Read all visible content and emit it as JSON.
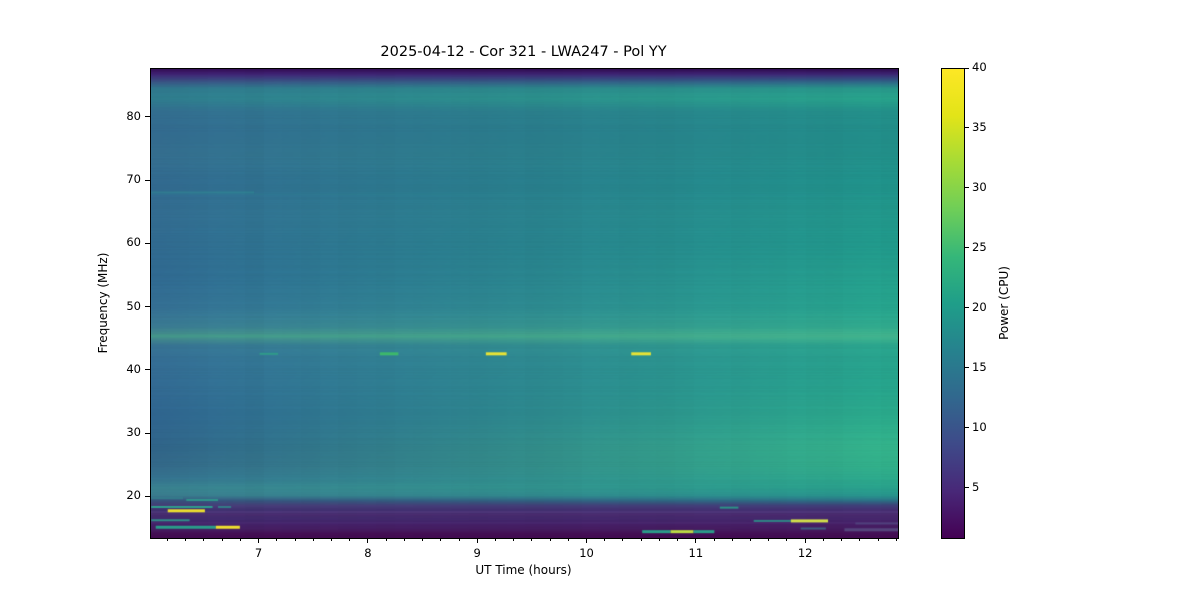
{
  "chart_data": {
    "type": "heatmap",
    "title": "2025-04-12 - Cor 321 - LWA247 - Pol YY",
    "xlabel": "UT Time (hours)",
    "ylabel": "Frequency (MHz)",
    "x_range": [
      6.007,
      12.84
    ],
    "y_range": [
      13.6,
      87.7
    ],
    "x_major_ticks": [
      7,
      8,
      9,
      10,
      11,
      12
    ],
    "x_minor_step_hours": 0.16667,
    "y_major_ticks": [
      20,
      30,
      40,
      50,
      60,
      70,
      80
    ],
    "grid": false,
    "legend": "none",
    "colorbar": {
      "label": "Power (CPU)",
      "ticks": [
        5,
        10,
        15,
        20,
        25,
        30,
        35,
        40
      ],
      "range": [
        0.9,
        40
      ],
      "colormap": "viridis",
      "stops": [
        [
          0.0,
          "#440154"
        ],
        [
          0.1,
          "#482878"
        ],
        [
          0.2,
          "#3e4a89"
        ],
        [
          0.3,
          "#31688e"
        ],
        [
          0.4,
          "#26828e"
        ],
        [
          0.5,
          "#1f9e89"
        ],
        [
          0.6,
          "#35b779"
        ],
        [
          0.7,
          "#6ece58"
        ],
        [
          0.8,
          "#a5db36"
        ],
        [
          0.9,
          "#e2e418"
        ],
        [
          1.0,
          "#fde725"
        ]
      ]
    },
    "background_profiles": {
      "left_column": [
        [
          87.7,
          "#330d55"
        ],
        [
          86.9,
          "#3f2273"
        ],
        [
          85.8,
          "#3a4f82"
        ],
        [
          84.6,
          "#30788e"
        ],
        [
          83.0,
          "#2f7d8e"
        ],
        [
          81.0,
          "#336e90"
        ],
        [
          78.0,
          "#336b90"
        ],
        [
          74.0,
          "#356f90"
        ],
        [
          70.0,
          "#326a90"
        ],
        [
          65.0,
          "#336d92"
        ],
        [
          60.0,
          "#316b91"
        ],
        [
          55.0,
          "#306a92"
        ],
        [
          50.0,
          "#357095"
        ],
        [
          47.0,
          "#3b7b93"
        ],
        [
          45.5,
          "#459089"
        ],
        [
          44.0,
          "#387394"
        ],
        [
          42.0,
          "#356e95"
        ],
        [
          38.0,
          "#336b94"
        ],
        [
          33.0,
          "#306691"
        ],
        [
          28.0,
          "#306489"
        ],
        [
          25.0,
          "#34698a"
        ],
        [
          23.0,
          "#357390"
        ],
        [
          21.5,
          "#3a8290"
        ],
        [
          20.3,
          "#3a7c8e"
        ],
        [
          19.5,
          "#37537e"
        ],
        [
          18.7,
          "#473c77"
        ],
        [
          18.0,
          "#3f3170"
        ],
        [
          17.3,
          "#482c6f"
        ],
        [
          16.6,
          "#3f2a6c"
        ],
        [
          15.8,
          "#44226a"
        ],
        [
          15.0,
          "#451e62"
        ],
        [
          14.3,
          "#440f54"
        ],
        [
          13.6,
          "#420a50"
        ]
      ],
      "right_column": [
        [
          87.7,
          "#2e0c4f"
        ],
        [
          86.9,
          "#3d2473"
        ],
        [
          85.8,
          "#2f5e85"
        ],
        [
          84.6,
          "#27988a"
        ],
        [
          83.0,
          "#27a38a"
        ],
        [
          81.0,
          "#229089"
        ],
        [
          78.0,
          "#218e89"
        ],
        [
          74.0,
          "#219089"
        ],
        [
          70.0,
          "#1f938a"
        ],
        [
          65.0,
          "#21988b"
        ],
        [
          60.0,
          "#209a8b"
        ],
        [
          55.0,
          "#23a08c"
        ],
        [
          50.0,
          "#26a58d"
        ],
        [
          47.0,
          "#30ab8d"
        ],
        [
          45.5,
          "#42b58d"
        ],
        [
          44.0,
          "#2aa68d"
        ],
        [
          42.0,
          "#27a38c"
        ],
        [
          38.0,
          "#26a58c"
        ],
        [
          33.0,
          "#2aab8b"
        ],
        [
          28.0,
          "#33b38a"
        ],
        [
          25.0,
          "#31b089"
        ],
        [
          23.0,
          "#2caa8b"
        ],
        [
          21.5,
          "#28a18b"
        ],
        [
          20.3,
          "#27948c"
        ],
        [
          19.5,
          "#2b7186"
        ],
        [
          18.7,
          "#3f3e78"
        ],
        [
          18.0,
          "#452f72"
        ],
        [
          17.3,
          "#4a2a6e"
        ],
        [
          16.6,
          "#44266a"
        ],
        [
          15.8,
          "#471e66"
        ],
        [
          15.0,
          "#451a5e"
        ],
        [
          14.3,
          "#430f55"
        ],
        [
          13.6,
          "#420a50"
        ]
      ]
    },
    "full_width_bands": [
      {
        "freq": 45.5,
        "color": "#45b18e",
        "alpha": 0.25,
        "px": 3
      },
      {
        "freq": 67.9,
        "color": "#2e8c95",
        "alpha": 0.15,
        "px": 2
      },
      {
        "freq": 17.7,
        "color": "#5a4488",
        "alpha": 0.4,
        "px": 2
      },
      {
        "freq": 16.0,
        "color": "#4f3378",
        "alpha": 0.35,
        "px": 2
      }
    ],
    "features": [
      {
        "t0": 7.0,
        "t1": 7.17,
        "freq": 42.7,
        "color": "#2f9f88",
        "px": 2,
        "alpha": 0.9
      },
      {
        "t0": 8.1,
        "t1": 8.27,
        "freq": 42.7,
        "color": "#3db96b",
        "px": 3,
        "alpha": 1
      },
      {
        "t0": 9.07,
        "t1": 9.26,
        "freq": 42.7,
        "color": "#e9e434",
        "px": 3,
        "alpha": 1
      },
      {
        "t0": 10.4,
        "t1": 10.58,
        "freq": 42.7,
        "color": "#e9e434",
        "px": 3,
        "alpha": 1
      },
      {
        "t0": 6.01,
        "t1": 6.95,
        "freq": 68.2,
        "color": "#2fa195",
        "px": 2,
        "alpha": 0.3
      },
      {
        "t0": 6.33,
        "t1": 6.62,
        "freq": 19.6,
        "color": "#2f9b8c",
        "px": 2,
        "alpha": 0.9
      },
      {
        "t0": 6.01,
        "t1": 6.3,
        "freq": 19.9,
        "color": "#35808c",
        "px": 2,
        "alpha": 0.8
      },
      {
        "t0": 6.01,
        "t1": 6.57,
        "freq": 18.5,
        "color": "#2f9e8d",
        "px": 2,
        "alpha": 1
      },
      {
        "t0": 6.62,
        "t1": 6.74,
        "freq": 18.5,
        "color": "#2f8f8c",
        "px": 2,
        "alpha": 0.8
      },
      {
        "t0": 6.16,
        "t1": 6.5,
        "freq": 17.9,
        "color": "#ecdf2e",
        "px": 3,
        "alpha": 1
      },
      {
        "t0": 6.01,
        "t1": 6.36,
        "freq": 16.4,
        "color": "#2f9b8c",
        "px": 2,
        "alpha": 0.9
      },
      {
        "t0": 6.05,
        "t1": 6.6,
        "freq": 15.3,
        "color": "#2a9d8a",
        "px": 3,
        "alpha": 1
      },
      {
        "t0": 6.6,
        "t1": 6.82,
        "freq": 15.3,
        "color": "#f0e12f",
        "px": 3,
        "alpha": 1
      },
      {
        "t0": 11.21,
        "t1": 11.38,
        "freq": 18.4,
        "color": "#2a9d8a",
        "px": 2,
        "alpha": 0.9
      },
      {
        "t0": 11.52,
        "t1": 11.86,
        "freq": 16.3,
        "color": "#2d8f8a",
        "px": 2,
        "alpha": 0.9
      },
      {
        "t0": 11.86,
        "t1": 12.2,
        "freq": 16.3,
        "color": "#d3e04a",
        "px": 3,
        "alpha": 1
      },
      {
        "t0": 11.95,
        "t1": 12.18,
        "freq": 15.1,
        "color": "#3c6d88",
        "px": 2,
        "alpha": 0.8
      },
      {
        "t0": 10.5,
        "t1": 10.76,
        "freq": 14.6,
        "color": "#2a9d8a",
        "px": 3,
        "alpha": 1
      },
      {
        "t0": 10.76,
        "t1": 10.97,
        "freq": 14.6,
        "color": "#bddc44",
        "px": 3,
        "alpha": 1
      },
      {
        "t0": 10.97,
        "t1": 11.16,
        "freq": 14.6,
        "color": "#2a9d8a",
        "px": 3,
        "alpha": 1
      },
      {
        "t0": 12.45,
        "t1": 12.84,
        "freq": 15.9,
        "color": "#51447f",
        "px": 2,
        "alpha": 0.9
      },
      {
        "t0": 12.35,
        "t1": 12.84,
        "freq": 14.9,
        "color": "#57497f",
        "px": 3,
        "alpha": 0.9
      }
    ]
  }
}
